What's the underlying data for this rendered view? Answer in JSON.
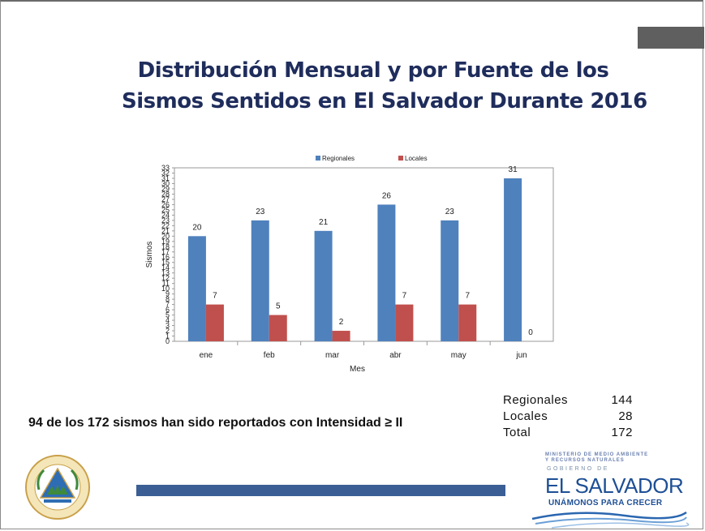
{
  "title": {
    "line1": "Distribución Mensual y por Fuente de los",
    "line2": "Sismos Sentidos en El Salvador Durante 2016"
  },
  "chart_data": {
    "type": "bar",
    "categories": [
      "ene",
      "feb",
      "mar",
      "abr",
      "may",
      "jun"
    ],
    "series": [
      {
        "name": "Regionales",
        "color": "#4f81bd",
        "values": [
          20,
          23,
          21,
          26,
          23,
          31
        ]
      },
      {
        "name": "Locales",
        "color": "#c0504d",
        "values": [
          7,
          5,
          2,
          7,
          7,
          0
        ]
      }
    ],
    "xlabel": "Mes",
    "ylabel": "Sismos",
    "ylim": [
      0,
      33
    ],
    "yticks": [
      "0",
      "1",
      "2",
      "3",
      "4",
      "5",
      "6",
      "7",
      "8",
      "9",
      "10",
      "11",
      "12",
      "13",
      "14",
      "15",
      "16",
      "17",
      "18",
      "19",
      "20",
      "21",
      "22",
      "23",
      "24",
      "25",
      "26",
      "27",
      "28",
      "29",
      "30",
      "31",
      "32",
      "33"
    ],
    "legend_position": "top",
    "grid": false
  },
  "stats": [
    {
      "label": "Regionales",
      "value": "144"
    },
    {
      "label": "Locales",
      "value": "28"
    },
    {
      "label": "Total",
      "value": "172"
    }
  ],
  "note": "94 de los 172 sismos han sido reportados con Intensidad ≥ II",
  "logo": {
    "ministry_line1": "MINISTERIO DE MEDIO AMBIENTE",
    "ministry_line2": "Y RECURSOS NATURALES",
    "gobierno": "GOBIERNO DE",
    "country": "EL SALVADOR",
    "slogan": "UNÁMONOS PARA CRECER"
  },
  "colors": {
    "title": "#1f2d5c",
    "accent_bar": "#3b5f95",
    "logo_blue": "#1e4f95"
  }
}
